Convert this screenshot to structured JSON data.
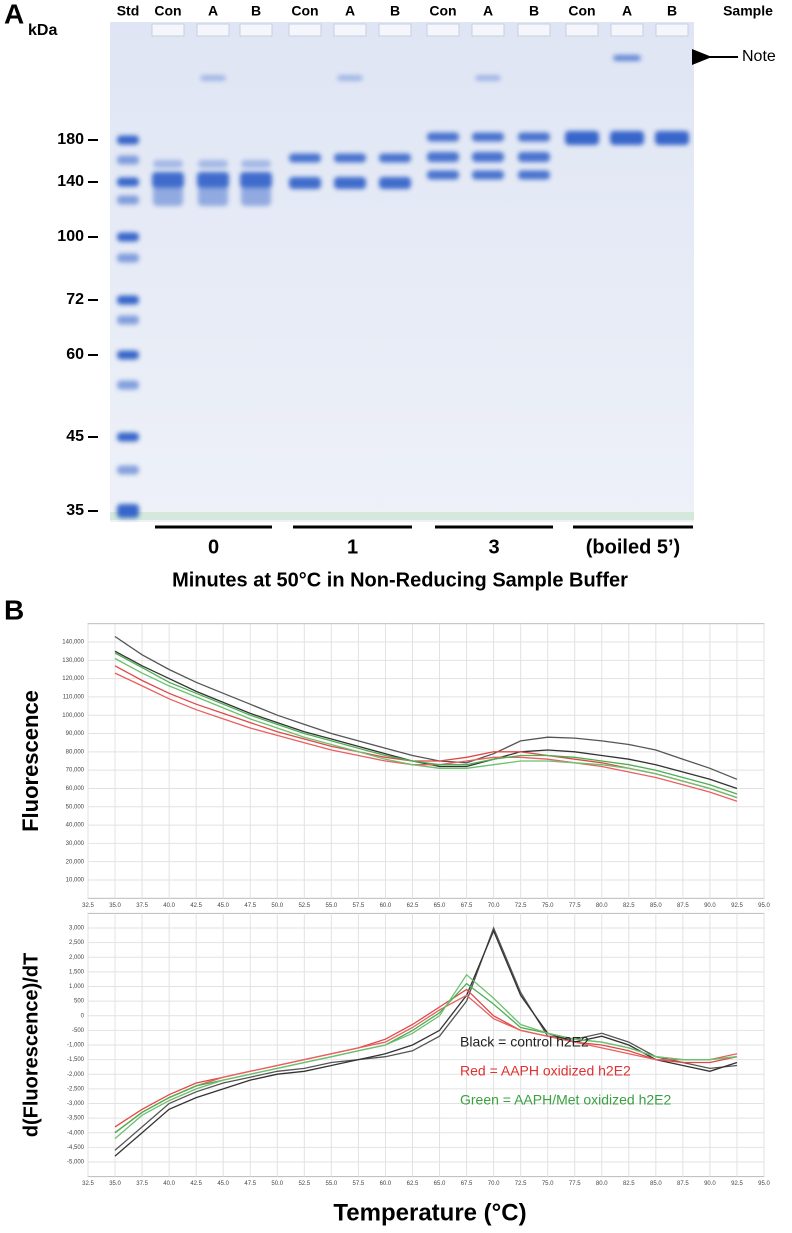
{
  "panel_a": {
    "label": "A",
    "unit": "kDa",
    "std": "Std",
    "lanes": [
      "Con",
      "A",
      "B",
      "Con",
      "A",
      "B",
      "Con",
      "A",
      "B",
      "Con",
      "A",
      "B"
    ],
    "sample": "Sample",
    "note": "Note",
    "markers": [
      "180",
      "140",
      "100",
      "72",
      "60",
      "45",
      "35"
    ],
    "groups": [
      "0",
      "1",
      "3",
      "(boiled 5’)"
    ],
    "xlabel": "Minutes at 50°C in Non-Reducing Sample Buffer"
  },
  "panel_b_label": "B",
  "chart_data": [
    {
      "type": "line",
      "ylabel": "Fluorescence",
      "x": [
        35,
        37.5,
        40,
        42.5,
        45,
        47.5,
        50,
        52.5,
        55,
        57.5,
        60,
        62.5,
        65,
        67.5,
        70,
        72.5,
        75,
        77.5,
        80,
        82.5,
        85,
        87.5,
        90,
        92.5
      ],
      "xlim": [
        32.5,
        95
      ],
      "xticks": [
        32.5,
        {
          "value": 35,
          "label": "35.0"
        },
        37.5,
        {
          "value": 40,
          "label": "40.0"
        },
        42.5,
        {
          "value": 45,
          "label": "45.0"
        },
        47.5,
        {
          "value": 50,
          "label": "50.0"
        },
        52.5,
        {
          "value": 55,
          "label": "55.0"
        },
        57.5,
        {
          "value": 60,
          "label": "60.0"
        },
        62.5,
        {
          "value": 65,
          "label": "65.0"
        },
        67.5,
        {
          "value": 70,
          "label": "70.0"
        },
        72.5,
        {
          "value": 75,
          "label": "75.0"
        },
        77.5,
        {
          "value": 80,
          "label": "80.0"
        },
        82.5,
        {
          "value": 85,
          "label": "85.0"
        },
        87.5,
        {
          "value": 90,
          "label": "90.0"
        },
        92.5,
        {
          "value": 95,
          "label": "95.0"
        }
      ],
      "ylim": [
        0,
        150000
      ],
      "yticks": [
        {
          "value": 10000,
          "label": "10,000"
        },
        {
          "value": 20000,
          "label": "20,000"
        },
        {
          "value": 30000,
          "label": "30,000"
        },
        {
          "value": 40000,
          "label": "40,000"
        },
        {
          "value": 50000,
          "label": "50,000"
        },
        {
          "value": 60000,
          "label": "60,000"
        },
        {
          "value": 70000,
          "label": "70,000"
        },
        {
          "value": 80000,
          "label": "80,000"
        },
        {
          "value": 90000,
          "label": "90,000"
        },
        {
          "value": 100000,
          "label": "100,000"
        },
        {
          "value": 110000,
          "label": "110,000"
        },
        {
          "value": 120000,
          "label": "120,000"
        },
        {
          "value": 130000,
          "label": "130,000"
        },
        {
          "value": 140000,
          "label": "140,000"
        }
      ],
      "grid": true,
      "series": [
        {
          "color": "#555555",
          "values": [
            143000,
            133000,
            125000,
            118000,
            112000,
            106000,
            100000,
            95000,
            90000,
            86000,
            82000,
            78000,
            75000,
            74000,
            79000,
            86000,
            88000,
            87500,
            86000,
            84000,
            81000,
            76000,
            71000,
            65000
          ]
        },
        {
          "color": "#333333",
          "values": [
            135000,
            127000,
            120000,
            113000,
            107000,
            101000,
            96000,
            91000,
            87000,
            83000,
            79000,
            75000,
            72000,
            72000,
            76000,
            80000,
            81000,
            80000,
            78000,
            76000,
            73000,
            69000,
            65000,
            60000
          ]
        },
        {
          "color": "#e04848",
          "values": [
            127000,
            119000,
            112000,
            106000,
            101000,
            96000,
            91000,
            87000,
            83000,
            80000,
            77000,
            75000,
            75000,
            77000,
            80000,
            80000,
            78000,
            76000,
            74000,
            71000,
            68000,
            64000,
            60000,
            55000
          ]
        },
        {
          "color": "#e86060",
          "values": [
            123000,
            116000,
            109000,
            103000,
            98000,
            93000,
            89000,
            85000,
            81000,
            78000,
            75000,
            73000,
            73000,
            75000,
            77000,
            77000,
            76000,
            74000,
            72000,
            69000,
            66000,
            62000,
            58000,
            53000
          ]
        },
        {
          "color": "#4caf50",
          "values": [
            134000,
            126000,
            118000,
            112000,
            106000,
            100000,
            95000,
            90000,
            86000,
            82000,
            78000,
            75000,
            73000,
            73000,
            76000,
            78000,
            78000,
            77000,
            75000,
            73000,
            70000,
            66000,
            62000,
            57000
          ]
        },
        {
          "color": "#6cc070",
          "values": [
            131000,
            123000,
            116000,
            110000,
            104000,
            98000,
            93000,
            88000,
            84000,
            80000,
            76000,
            73000,
            71000,
            71000,
            73000,
            75000,
            75000,
            74000,
            73000,
            71000,
            68000,
            64000,
            60000,
            55000
          ]
        }
      ]
    },
    {
      "type": "line",
      "ylabel": "d(Fluorescence)/dT",
      "xlabel": "Temperature (°C)",
      "x": [
        35,
        37.5,
        40,
        42.5,
        45,
        47.5,
        50,
        52.5,
        55,
        57.5,
        60,
        62.5,
        65,
        67.5,
        70,
        72.5,
        75,
        77.5,
        80,
        82.5,
        85,
        87.5,
        90,
        92.5
      ],
      "xlim": [
        32.5,
        95
      ],
      "xticks": [
        32.5,
        {
          "value": 35,
          "label": "35.0"
        },
        37.5,
        {
          "value": 40,
          "label": "40.0"
        },
        42.5,
        {
          "value": 45,
          "label": "45.0"
        },
        47.5,
        {
          "value": 50,
          "label": "50.0"
        },
        52.5,
        {
          "value": 55,
          "label": "55.0"
        },
        57.5,
        {
          "value": 60,
          "label": "60.0"
        },
        62.5,
        {
          "value": 65,
          "label": "65.0"
        },
        67.5,
        {
          "value": 70,
          "label": "70.0"
        },
        72.5,
        {
          "value": 75,
          "label": "75.0"
        },
        77.5,
        {
          "value": 80,
          "label": "80.0"
        },
        82.5,
        {
          "value": 85,
          "label": "85.0"
        },
        87.5,
        {
          "value": 90,
          "label": "90.0"
        },
        92.5,
        {
          "value": 95,
          "label": "95.0"
        }
      ],
      "ylim": [
        -5500,
        3500
      ],
      "yticks": [
        {
          "value": 3000,
          "label": "3,000"
        },
        {
          "value": 2500,
          "label": "2,500"
        },
        {
          "value": 2000,
          "label": "2,000"
        },
        {
          "value": 1500,
          "label": "1,500"
        },
        {
          "value": 1000,
          "label": "1,000"
        },
        500,
        0,
        -500,
        {
          "value": -1000,
          "label": "-1,000"
        },
        {
          "value": -1500,
          "label": "-1,500"
        },
        {
          "value": -2000,
          "label": "-2,000"
        },
        {
          "value": -2500,
          "label": "-2,500"
        },
        {
          "value": -3000,
          "label": "-3,000"
        },
        {
          "value": -3500,
          "label": "-3,500"
        },
        {
          "value": -4000,
          "label": "-4,000"
        },
        {
          "value": -4500,
          "label": "-4,500"
        },
        {
          "value": -5000,
          "label": "-5,000"
        }
      ],
      "grid": true,
      "series": [
        {
          "color": "#555555",
          "values": [
            -4600,
            -3800,
            -3000,
            -2600,
            -2300,
            -2100,
            -1900,
            -1800,
            -1600,
            -1500,
            -1400,
            -1200,
            -700,
            500,
            3000,
            800,
            -700,
            -800,
            -600,
            -900,
            -1400,
            -1600,
            -1800,
            -1700
          ]
        },
        {
          "color": "#333333",
          "values": [
            -4800,
            -4000,
            -3200,
            -2800,
            -2500,
            -2200,
            -2000,
            -1900,
            -1700,
            -1500,
            -1300,
            -1000,
            -500,
            700,
            2900,
            700,
            -600,
            -900,
            -700,
            -1000,
            -1500,
            -1700,
            -1900,
            -1600
          ]
        },
        {
          "color": "#e04848",
          "values": [
            -3800,
            -3200,
            -2700,
            -2300,
            -2100,
            -1900,
            -1700,
            -1500,
            -1300,
            -1100,
            -800,
            -300,
            300,
            900,
            0,
            -500,
            -700,
            -900,
            -1000,
            -1200,
            -1500,
            -1600,
            -1600,
            -1400
          ]
        },
        {
          "color": "#e86060",
          "values": [
            -4000,
            -3300,
            -2800,
            -2400,
            -2100,
            -1900,
            -1700,
            -1500,
            -1300,
            -1100,
            -900,
            -400,
            200,
            700,
            -100,
            -500,
            -700,
            -900,
            -1100,
            -1300,
            -1500,
            -1500,
            -1500,
            -1300
          ]
        },
        {
          "color": "#4caf50",
          "values": [
            -4000,
            -3300,
            -2800,
            -2400,
            -2200,
            -2000,
            -1800,
            -1600,
            -1400,
            -1200,
            -1000,
            -500,
            100,
            1100,
            400,
            -400,
            -600,
            -800,
            -900,
            -1100,
            -1400,
            -1500,
            -1500,
            -1400
          ]
        },
        {
          "color": "#6cc070",
          "values": [
            -4200,
            -3400,
            -2900,
            -2500,
            -2200,
            -2000,
            -1800,
            -1600,
            -1400,
            -1200,
            -1000,
            -600,
            0,
            1400,
            600,
            -300,
            -600,
            -800,
            -900,
            -1100,
            -1400,
            -1500,
            -1500,
            -1400
          ]
        }
      ],
      "annotations": [
        {
          "text": "Black = control h2E2",
          "color": "#222222"
        },
        {
          "text": "Red = AAPH oxidized h2E2",
          "color": "#e03030"
        },
        {
          "text": "Green = AAPH/Met oxidized h2E2",
          "color": "#3aa040"
        }
      ]
    }
  ]
}
